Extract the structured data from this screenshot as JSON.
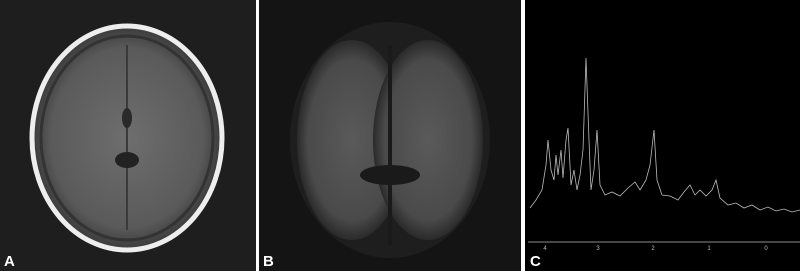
{
  "panels": [
    {
      "label": "A"
    },
    {
      "label": "B"
    },
    {
      "label": "C",
      "axis_labels": [
        "4",
        "3",
        "2",
        "1",
        "0"
      ]
    }
  ]
}
